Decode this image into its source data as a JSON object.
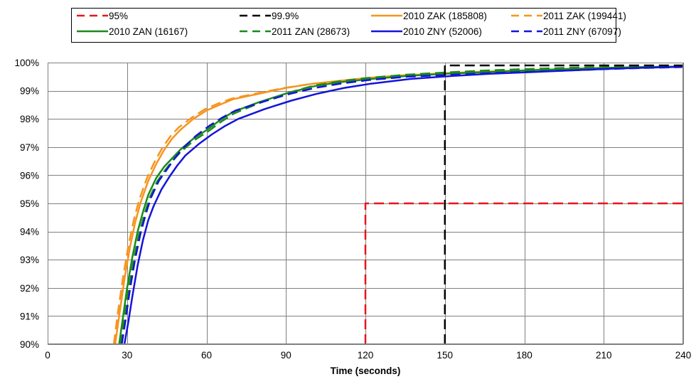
{
  "chart_data": {
    "type": "line",
    "title": "",
    "xlabel": "Time (seconds)",
    "ylabel": "",
    "xlim": [
      0,
      240
    ],
    "ylim": [
      90,
      100
    ],
    "x_ticks": [
      0,
      30,
      60,
      90,
      120,
      150,
      180,
      210,
      240
    ],
    "y_ticks": [
      90,
      91,
      92,
      93,
      94,
      95,
      96,
      97,
      98,
      99,
      100
    ],
    "y_tick_suffix": "%",
    "grid": true,
    "legend_position": "top",
    "colors": {
      "red": "#e8141c",
      "black": "#000000",
      "orange": "#f7941d",
      "green": "#1b8a1b",
      "blue": "#1414d8"
    },
    "series": [
      {
        "name": "95%",
        "color": "#e8141c",
        "dash": true,
        "x": [
          120,
          120,
          240
        ],
        "y": [
          90,
          95,
          95
        ]
      },
      {
        "name": "99.9%",
        "color": "#000000",
        "dash": true,
        "x": [
          150,
          150,
          240
        ],
        "y": [
          90,
          99.9,
          99.9
        ]
      },
      {
        "name": "2010 ZAK (185808)",
        "color": "#f7941d",
        "dash": false,
        "x": [
          25.5,
          27,
          29,
          31,
          33,
          35,
          38,
          41,
          44,
          47,
          50,
          55,
          60,
          65,
          70,
          80,
          90,
          100,
          110,
          120,
          135,
          150,
          165,
          180,
          195,
          210,
          225,
          240
        ],
        "y": [
          90.0,
          91.0,
          92.3,
          93.4,
          94.3,
          95.0,
          95.8,
          96.4,
          96.9,
          97.3,
          97.6,
          98.0,
          98.3,
          98.5,
          98.7,
          98.9,
          99.1,
          99.25,
          99.35,
          99.45,
          99.55,
          99.62,
          99.68,
          99.72,
          99.77,
          99.8,
          99.83,
          99.86
        ]
      },
      {
        "name": "2011 ZAK (199441)",
        "color": "#f7941d",
        "dash": true,
        "x": [
          25,
          26.5,
          28.5,
          30.5,
          32.5,
          34.5,
          37.5,
          40.5,
          43.5,
          46.5,
          49.5,
          54.5,
          59.5,
          64.5,
          69.5,
          79.5,
          89.5,
          99.5,
          109.5,
          119.5,
          134.5,
          149.5,
          164.5,
          179.5,
          194.5,
          209.5,
          224.5,
          240
        ],
        "y": [
          90.0,
          91.1,
          92.4,
          93.5,
          94.4,
          95.1,
          95.9,
          96.5,
          97.0,
          97.4,
          97.7,
          98.05,
          98.35,
          98.55,
          98.72,
          98.92,
          99.1,
          99.24,
          99.34,
          99.44,
          99.54,
          99.61,
          99.67,
          99.72,
          99.76,
          99.8,
          99.83,
          99.86
        ]
      },
      {
        "name": "2010 ZAN (16167)",
        "color": "#1b8a1b",
        "dash": false,
        "x": [
          27,
          28.5,
          30,
          32,
          34,
          36,
          38,
          41,
          44,
          47,
          50,
          55,
          60,
          65,
          70,
          80,
          90,
          100,
          110,
          120,
          135,
          150,
          165,
          180,
          195,
          210,
          225,
          240
        ],
        "y": [
          90.0,
          91.0,
          92.0,
          93.1,
          94.0,
          94.7,
          95.3,
          95.9,
          96.3,
          96.6,
          96.9,
          97.3,
          97.6,
          97.95,
          98.25,
          98.6,
          98.9,
          99.15,
          99.3,
          99.4,
          99.52,
          99.6,
          99.66,
          99.72,
          99.77,
          99.81,
          99.84,
          99.86
        ]
      },
      {
        "name": "2011 ZAN (28673)",
        "color": "#1b8a1b",
        "dash": true,
        "x": [
          27.5,
          29,
          30.5,
          32.5,
          34.5,
          36.5,
          38.5,
          41.5,
          44.5,
          47.5,
          50.5,
          55.5,
          60.5,
          65.5,
          70.5,
          80.5,
          90.5,
          100.5,
          110.5,
          120.5,
          135.5,
          150.5,
          165.5,
          180.5,
          195.5,
          210.5,
          225.5,
          240
        ],
        "y": [
          90.0,
          90.9,
          91.9,
          93.0,
          93.9,
          94.6,
          95.2,
          95.8,
          96.2,
          96.55,
          96.85,
          97.25,
          97.55,
          97.9,
          98.2,
          98.58,
          98.92,
          99.18,
          99.34,
          99.45,
          99.57,
          99.65,
          99.72,
          99.77,
          99.81,
          99.84,
          99.86,
          99.88
        ]
      },
      {
        "name": "2010 ZNY (52006)",
        "color": "#1414d8",
        "dash": false,
        "x": [
          29,
          30.5,
          32,
          34,
          36,
          38,
          40,
          43,
          46,
          49,
          52,
          57,
          62,
          67,
          72,
          82,
          92,
          102,
          112,
          122,
          137,
          152,
          167,
          182,
          197,
          212,
          227,
          240
        ],
        "y": [
          90.0,
          90.8,
          91.7,
          92.8,
          93.7,
          94.4,
          94.9,
          95.5,
          95.95,
          96.35,
          96.7,
          97.1,
          97.45,
          97.75,
          98.0,
          98.35,
          98.65,
          98.9,
          99.1,
          99.25,
          99.42,
          99.52,
          99.6,
          99.66,
          99.72,
          99.78,
          99.82,
          99.85
        ]
      },
      {
        "name": "2011 ZNY (67097)",
        "color": "#1414d8",
        "dash": true,
        "x": [
          28,
          29.5,
          31,
          33,
          35,
          37,
          39,
          42,
          45,
          48,
          51,
          56,
          61,
          66,
          71,
          81,
          91,
          101,
          111,
          121,
          136,
          151,
          166,
          181,
          196,
          211,
          226,
          240
        ],
        "y": [
          90.0,
          90.9,
          91.9,
          93.0,
          93.9,
          94.6,
          95.2,
          95.8,
          96.2,
          96.6,
          96.95,
          97.4,
          97.75,
          98.05,
          98.3,
          98.6,
          98.88,
          99.1,
          99.26,
          99.38,
          99.5,
          99.56,
          99.62,
          99.67,
          99.72,
          99.77,
          99.81,
          99.84
        ]
      }
    ]
  }
}
